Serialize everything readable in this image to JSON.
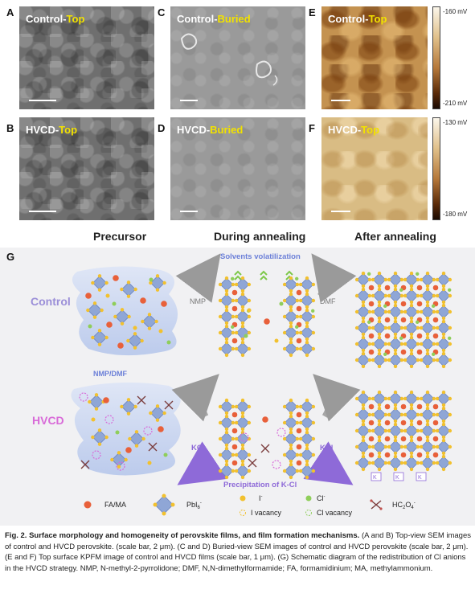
{
  "panels": {
    "A": {
      "letter": "A",
      "title_white": "Control-",
      "title_yellow": "Top"
    },
    "B": {
      "letter": "B",
      "title_white": "HVCD-",
      "title_yellow": "Top"
    },
    "C": {
      "letter": "C",
      "title_white": "Control-",
      "title_yellow": "Buried"
    },
    "D": {
      "letter": "D",
      "title_white": "HVCD-",
      "title_yellow": "Buried"
    },
    "E": {
      "letter": "E",
      "title_white": "Control-",
      "title_yellow": "Top"
    },
    "F": {
      "letter": "F",
      "title_white": "HVCD-",
      "title_yellow": "Top"
    }
  },
  "colorbars": {
    "E": {
      "max": "-160 mV",
      "min": "-210 mV"
    },
    "F": {
      "max": "-130 mV",
      "min": "-180 mV"
    }
  },
  "stages": {
    "precursor": "Precursor",
    "during": "During annealing",
    "after": "After annealing"
  },
  "schematic": {
    "letter": "G",
    "control_label": "Control",
    "hvcd_label": "HVCD",
    "solvents": "Solvents volatilization",
    "nmp": "NMP",
    "dmf": "DMF",
    "nmp_dmf": "NMP/DMF",
    "kcl_left": "KCl",
    "kcl_right": "KCl",
    "precipitation": "Precipitation of K-Cl",
    "k_label": "K",
    "legend": {
      "fa_ma": "FA/MA",
      "pbi6": "PbI",
      "pbi6_sub": "6",
      "pbi6_sup": "-",
      "i": "I",
      "i_sup": "-",
      "cl": "Cl",
      "cl_sup": "-",
      "i_vac": "I vacancy",
      "cl_vac": "Cl vacancy",
      "hc2o4": "HC",
      "hc2o4_sub1": "2",
      "hc2o4_mid": "O",
      "hc2o4_sub2": "4",
      "hc2o4_sup": "-"
    },
    "colors": {
      "octahedron": "#8fa6d6",
      "fa_ma": "#e8603a",
      "iodide": "#f2c12e",
      "chloride": "#8fce5a",
      "control_label": "#9b8fd8",
      "hvcd_label": "#d86ad8",
      "accent_blue": "#6b7fd8",
      "kcl": "#8e6ad8"
    }
  },
  "caption": {
    "bold_intro": "Fig. 2. Surface morphology and homogeneity of perovskite films, and film formation mechanisms.",
    "p1": "(A and B) Top-view SEM images of control and HVCD perovskite. (scale bar, 2 μm). (C and D) Buried-view SEM images of control and HVCD perovskite (scale bar, 2 μm). (E and F) Top surface KPFM image of control and HVCD films (scale bar, 1 μm). (G) Schematic diagram of the redistribution of Cl anions in the HVCD strategy. NMP, N-methyl-2-pyrrolidone; DMF, N,N-dimethylformamide; FA, formamidinium; MA, methylammonium."
  }
}
